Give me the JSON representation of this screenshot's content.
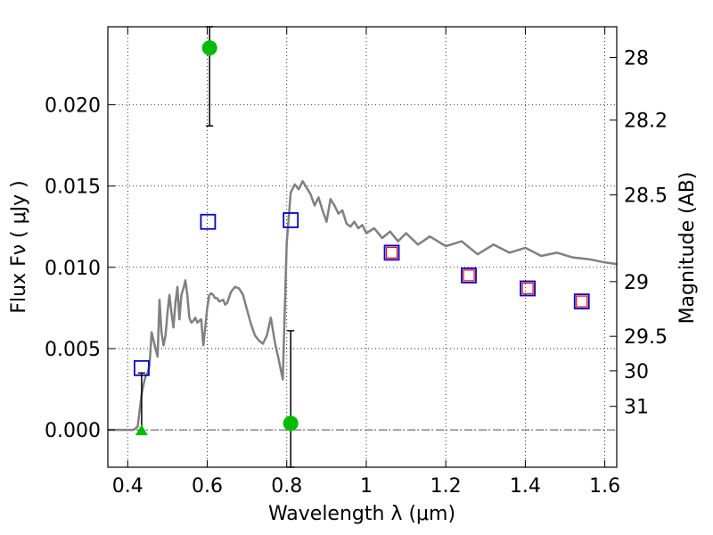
{
  "chart_data": {
    "type": "scatter",
    "xlabel": "Wavelength  λ (μm)",
    "ylabel": "Flux  Fν  ( μJy )",
    "y2label": "Magnitude (AB)",
    "xlim": [
      0.35,
      1.63
    ],
    "ylim": [
      -0.0023,
      0.0248
    ],
    "grid": true,
    "x_ticks": [
      {
        "value": 0.4,
        "label": "0.4"
      },
      {
        "value": 0.6,
        "label": "0.6"
      },
      {
        "value": 0.8,
        "label": "0.8"
      },
      {
        "value": 1.0,
        "label": "1"
      },
      {
        "value": 1.2,
        "label": "1.2"
      },
      {
        "value": 1.4,
        "label": "1.4"
      },
      {
        "value": 1.6,
        "label": "1.6"
      }
    ],
    "y_ticks": [
      {
        "value": 0.0,
        "label": "0.000"
      },
      {
        "value": 0.005,
        "label": "0.005"
      },
      {
        "value": 0.01,
        "label": "0.010"
      },
      {
        "value": 0.015,
        "label": "0.015"
      },
      {
        "value": 0.02,
        "label": "0.020"
      }
    ],
    "mag_ticks": [
      {
        "value": 28,
        "label": "28"
      },
      {
        "value": 28.2,
        "label": "28.2"
      },
      {
        "value": 28.5,
        "label": "28.5"
      },
      {
        "value": 29,
        "label": "29"
      },
      {
        "value": 29.5,
        "label": "29.5"
      },
      {
        "value": 30,
        "label": "30"
      },
      {
        "value": 31,
        "label": "31"
      }
    ],
    "series": [
      {
        "kind": "line",
        "color": "#808080",
        "x": [
          0.35,
          0.415,
          0.425,
          0.43,
          0.435,
          0.44,
          0.445,
          0.45,
          0.455,
          0.46,
          0.465,
          0.47,
          0.475,
          0.48,
          0.485,
          0.49,
          0.495,
          0.5,
          0.505,
          0.51,
          0.515,
          0.52,
          0.525,
          0.53,
          0.535,
          0.54,
          0.545,
          0.55,
          0.555,
          0.56,
          0.565,
          0.57,
          0.575,
          0.58,
          0.585,
          0.59,
          0.595,
          0.6,
          0.605,
          0.61,
          0.615,
          0.62,
          0.625,
          0.63,
          0.64,
          0.645,
          0.65,
          0.66,
          0.67,
          0.68,
          0.69,
          0.7,
          0.71,
          0.72,
          0.73,
          0.74,
          0.75,
          0.76,
          0.77,
          0.78,
          0.79,
          0.8,
          0.81,
          0.82,
          0.83,
          0.84,
          0.85,
          0.86,
          0.87,
          0.88,
          0.89,
          0.9,
          0.91,
          0.92,
          0.93,
          0.94,
          0.95,
          0.96,
          0.97,
          0.98,
          0.99,
          1.0,
          1.02,
          1.04,
          1.06,
          1.08,
          1.1,
          1.13,
          1.16,
          1.2,
          1.24,
          1.28,
          1.32,
          1.36,
          1.4,
          1.44,
          1.48,
          1.52,
          1.56,
          1.6,
          1.63
        ],
        "y": [
          0.0,
          0.0,
          0.0002,
          0.0012,
          0.0022,
          0.0028,
          0.0033,
          0.0035,
          0.004,
          0.006,
          0.0055,
          0.005,
          0.0045,
          0.008,
          0.006,
          0.0052,
          0.0058,
          0.0072,
          0.0083,
          0.0072,
          0.0063,
          0.0078,
          0.0088,
          0.0068,
          0.0083,
          0.0087,
          0.0092,
          0.0083,
          0.0069,
          0.0066,
          0.0067,
          0.0069,
          0.0066,
          0.0067,
          0.0068,
          0.0052,
          0.0063,
          0.0075,
          0.0083,
          0.0084,
          0.0083,
          0.0081,
          0.0081,
          0.0079,
          0.008,
          0.0077,
          0.0078,
          0.0085,
          0.0088,
          0.0087,
          0.0083,
          0.0074,
          0.0065,
          0.0058,
          0.0055,
          0.0053,
          0.0058,
          0.0069,
          0.0054,
          0.0043,
          0.0031,
          0.0115,
          0.0146,
          0.0151,
          0.0148,
          0.0153,
          0.0149,
          0.0145,
          0.0138,
          0.0143,
          0.0135,
          0.0128,
          0.0142,
          0.0138,
          0.0133,
          0.0135,
          0.0127,
          0.0125,
          0.0128,
          0.0124,
          0.0126,
          0.0121,
          0.0124,
          0.0118,
          0.0122,
          0.0116,
          0.0121,
          0.0114,
          0.0119,
          0.0113,
          0.0116,
          0.0108,
          0.0114,
          0.0109,
          0.0112,
          0.0107,
          0.0109,
          0.0106,
          0.0105,
          0.0103,
          0.0102
        ]
      },
      {
        "kind": "square",
        "color": "#0000cc",
        "x": [
          0.435,
          0.602,
          0.81,
          1.064,
          1.258,
          1.406,
          1.542
        ],
        "y": [
          0.0038,
          0.0128,
          0.0129,
          0.0109,
          0.0095,
          0.0087,
          0.0079
        ]
      },
      {
        "kind": "square-small",
        "color": "#ff0000",
        "x": [
          1.064,
          1.258,
          1.406,
          1.542
        ],
        "y": [
          0.0109,
          0.0095,
          0.0087,
          0.0079
        ]
      },
      {
        "kind": "errorbar-point",
        "color": "#00bb00",
        "points": [
          {
            "x": 0.606,
            "y": 0.0235,
            "ylow": 0.0187,
            "yhigh": 0.0248
          },
          {
            "x": 0.81,
            "y": 0.0004,
            "ylow": -0.0023,
            "yhigh": 0.0061
          }
        ]
      },
      {
        "kind": "upper-limit",
        "color": "#00bb00",
        "points": [
          {
            "x": 0.435,
            "y": 0.0,
            "yhigh": 0.0035
          }
        ]
      }
    ]
  }
}
